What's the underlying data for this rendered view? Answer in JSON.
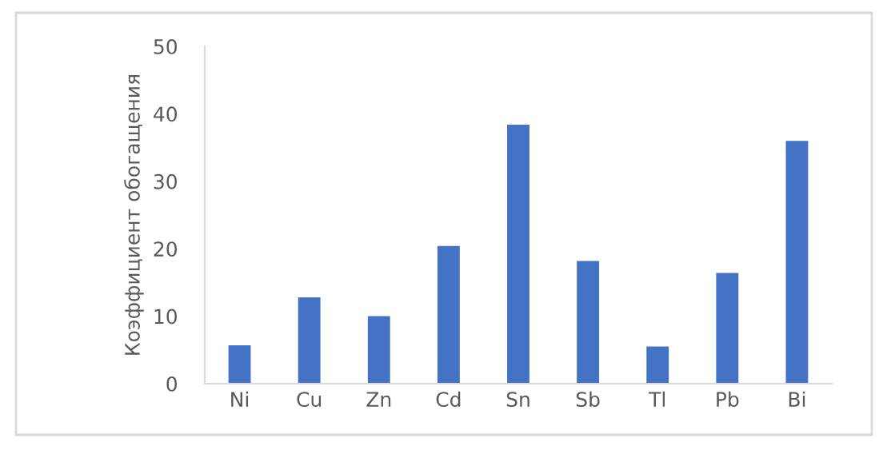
{
  "chart_data": {
    "type": "bar",
    "ylabel": "Коэффициент обогащения",
    "categories": [
      "Ni",
      "Cu",
      "Zn",
      "Cd",
      "Sn",
      "Sb",
      "Tl",
      "Pb",
      "Bi"
    ],
    "values": [
      5.7,
      12.8,
      10.0,
      20.4,
      38.4,
      18.2,
      5.5,
      16.4,
      36.0
    ],
    "color": "#4472c4",
    "ylim": [
      0,
      50
    ],
    "yticks": [
      0,
      10,
      20,
      30,
      40,
      50
    ],
    "grid": false,
    "legend": false
  }
}
